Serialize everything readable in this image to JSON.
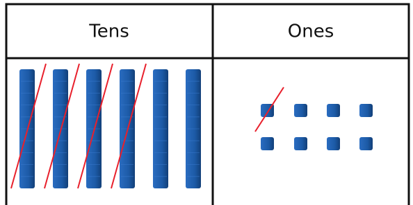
{
  "table": {
    "headers": [
      "Tens",
      "Ones"
    ]
  }
}
